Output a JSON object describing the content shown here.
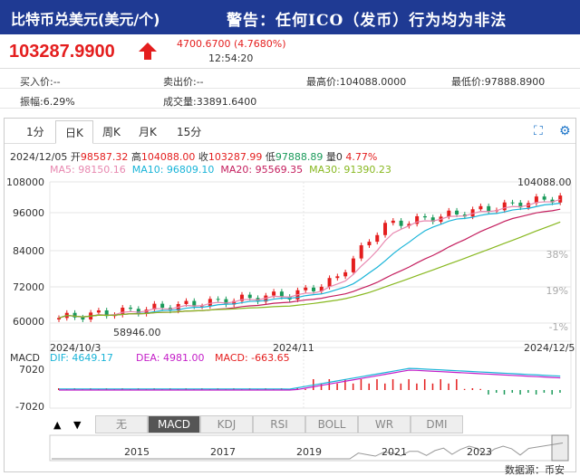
{
  "header": {
    "title": "比特币兑美元(美元/个)",
    "warning": "警告：任何ICO（发币）行为均为非法"
  },
  "quote": {
    "price": "103287.9900",
    "change": "4700.6700 (4.7680%)",
    "time": "12:54:20",
    "bid": "买入价:--",
    "ask": "卖出价:--",
    "high": "最高价:104088.0000",
    "low": "最低价:97888.8900",
    "amplitude": "振幅:6.29%",
    "volume": "成交量:33891.6400"
  },
  "tabs": [
    "1分",
    "日K",
    "周K",
    "月K",
    "15分"
  ],
  "active_tab": "日K",
  "ohlc": {
    "date": "2024/12/05",
    "open_label": "开",
    "open": "98587.32",
    "high_label": "高",
    "high": "104088.00",
    "close_label": "收",
    "close": "103287.99",
    "low_label": "低",
    "low": "97888.89",
    "vol_label": "量",
    "vol": "0",
    "pct": "4.77%"
  },
  "ma": {
    "ma5": "MA5: 98150.16",
    "ma10": "MA10: 96809.10",
    "ma20": "MA20: 95569.35",
    "ma30": "MA30: 91390.23"
  },
  "colors": {
    "up": "#e41e1e",
    "down": "#1a9a5a",
    "ma5": "#e888b0",
    "ma10": "#19b4d8",
    "ma20": "#c41e5e",
    "ma30": "#88b820",
    "header": "#1f3a93"
  },
  "chart_data": {
    "type": "candlestick",
    "y_ticks": [
      "108000",
      "96000",
      "84000",
      "72000",
      "60000"
    ],
    "pct_ticks": [
      "38%",
      "19%",
      "-1%"
    ],
    "x_labels": [
      "2024/10/3",
      "2024/11",
      "2024/12/5"
    ],
    "max_label": "104088.00",
    "min_label": "58946.00",
    "ylim": [
      58000,
      108000
    ]
  },
  "macd": {
    "title": "MACD",
    "dif": "DIF: 4649.17",
    "dea": "DEA: 4981.00",
    "macd": "MACD: -663.65",
    "ticks": [
      "7020",
      "-7020"
    ]
  },
  "indicators": [
    "无",
    "MACD",
    "KDJ",
    "RSI",
    "BOLL",
    "WR",
    "DMI"
  ],
  "active_indicator": "MACD",
  "timeline_years": [
    "2015",
    "2017",
    "2019",
    "2021",
    "2023"
  ],
  "source": "数据源：币安"
}
